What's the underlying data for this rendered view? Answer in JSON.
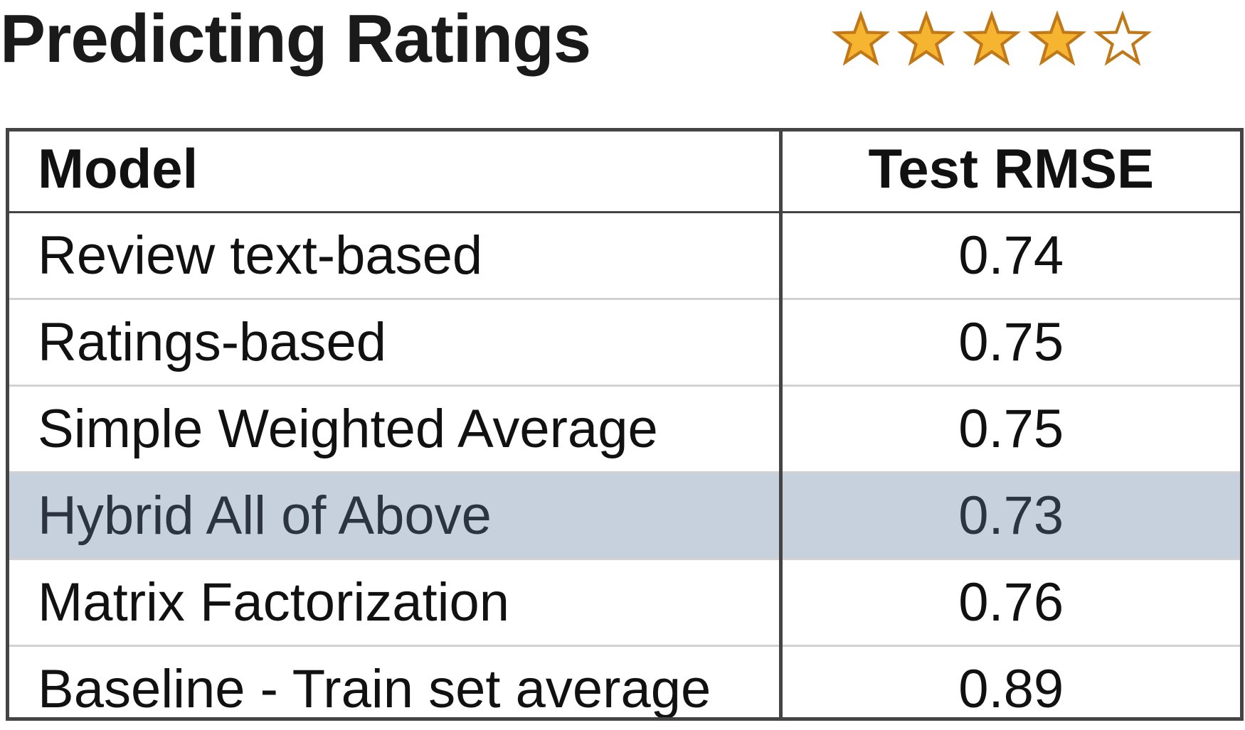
{
  "title": "Predicting Ratings",
  "rating": {
    "value": 4,
    "max": 5,
    "filled_color": "#f5b531",
    "outline_color": "#c07818",
    "icon": "star-icon"
  },
  "chart_data": {
    "type": "table",
    "columns": [
      "Model",
      "Test RMSE"
    ],
    "rows": [
      {
        "model": "Review text-based",
        "rmse": "0.74",
        "highlighted": false
      },
      {
        "model": "Ratings-based",
        "rmse": "0.75",
        "highlighted": false
      },
      {
        "model": "Simple Weighted Average",
        "rmse": "0.75",
        "highlighted": false
      },
      {
        "model": "Hybrid All of Above",
        "rmse": "0.73",
        "highlighted": true
      },
      {
        "model": "Matrix Factorization",
        "rmse": "0.76",
        "highlighted": false
      },
      {
        "model": "Baseline - Train set average",
        "rmse": "0.89",
        "highlighted": false
      }
    ],
    "highlight_color": "#c6d1dd"
  }
}
